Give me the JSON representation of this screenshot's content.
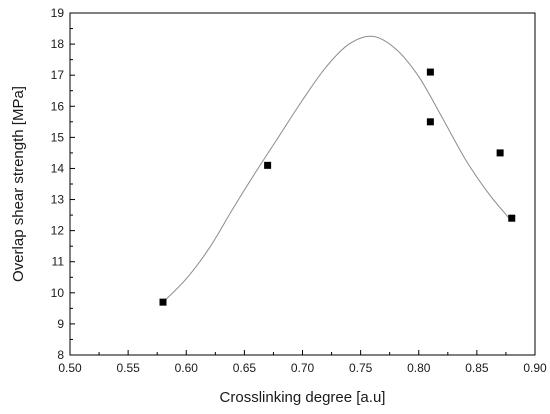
{
  "chart_data": {
    "type": "scatter",
    "title": "",
    "xlabel": "Crosslinking degree [a.u]",
    "ylabel": "Overlap shear strength [MPa]",
    "xlim": [
      0.5,
      0.9
    ],
    "ylim": [
      8,
      19
    ],
    "x_ticks": [
      "0.50",
      "0.55",
      "0.60",
      "0.65",
      "0.70",
      "0.75",
      "0.80",
      "0.85",
      "0.90"
    ],
    "y_ticks": [
      "8",
      "9",
      "10",
      "11",
      "12",
      "13",
      "14",
      "15",
      "16",
      "17",
      "18",
      "19"
    ],
    "grid": false,
    "legend": "none",
    "series": [
      {
        "marker": "square",
        "color": "#000000",
        "x": [
          0.58,
          0.67,
          0.81,
          0.81,
          0.87,
          0.88
        ],
        "y": [
          9.7,
          14.1,
          17.1,
          15.5,
          14.5,
          12.4
        ]
      }
    ],
    "fit_curve": {
      "style": "line",
      "color": "#8c8c8c",
      "x": [
        0.58,
        0.6,
        0.62,
        0.64,
        0.66,
        0.68,
        0.7,
        0.72,
        0.74,
        0.76,
        0.78,
        0.8,
        0.82,
        0.84,
        0.86,
        0.88
      ],
      "y": [
        9.7,
        10.45,
        11.45,
        12.7,
        13.9,
        15.05,
        16.2,
        17.25,
        18.0,
        18.25,
        17.85,
        16.95,
        15.65,
        14.3,
        13.2,
        12.3
      ]
    }
  }
}
